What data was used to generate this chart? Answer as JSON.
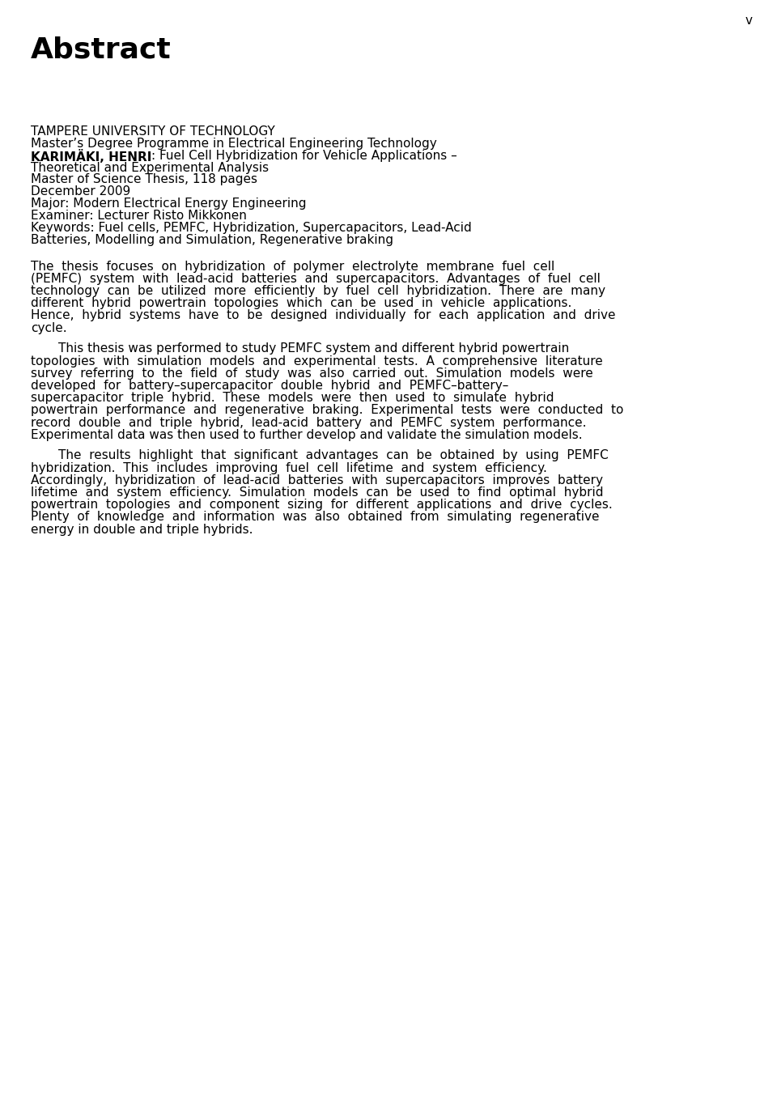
{
  "page_number": "v",
  "title": "Abstract",
  "background_color": "#ffffff",
  "text_color": "#000000",
  "page_number_fontsize": 11,
  "title_fontsize": 26,
  "body_fontsize": 11,
  "header_lines": [
    {
      "text": "TAMPERE UNIVERSITY OF TECHNOLOGY",
      "bold": false
    },
    {
      "text": "Master’s Degree Programme in Electrical Engineering Technology",
      "bold": false
    },
    {
      "text_parts": [
        {
          "text": "KARIMÄKI, HENRI",
          "bold": true
        },
        {
          "text": ": Fuel Cell Hybridization for Vehicle Applications –",
          "bold": false
        }
      ]
    },
    {
      "text": "Theoretical and Experimental Analysis",
      "bold": false
    },
    {
      "text": "Master of Science Thesis, 118 pages",
      "bold": false
    },
    {
      "text": "December 2009",
      "bold": false
    },
    {
      "text": "Major: Modern Electrical Energy Engineering",
      "bold": false
    },
    {
      "text": "Examiner: Lecturer Risto Mikkonen",
      "bold": false
    },
    {
      "text": "Keywords: Fuel cells, PEMFC, Hybridization, Supercapacitors, Lead-Acid",
      "bold": false
    },
    {
      "text": "Batteries, Modelling and Simulation, Regenerative braking",
      "bold": false
    }
  ],
  "paragraphs": [
    {
      "indent_first": false,
      "lines": [
        "The  thesis  focuses  on  hybridization  of  polymer  electrolyte  membrane  fuel  cell",
        "(PEMFC)  system  with  lead-acid  batteries  and  supercapacitors.  Advantages  of  fuel  cell",
        "technology  can  be  utilized  more  efficiently  by  fuel  cell  hybridization.  There  are  many",
        "different  hybrid  powertrain  topologies  which  can  be  used  in  vehicle  applications.",
        "Hence,  hybrid  systems  have  to  be  designed  individually  for  each  application  and  drive",
        "cycle."
      ]
    },
    {
      "indent_first": true,
      "lines": [
        "This thesis was performed to study PEMFC system and different hybrid powertrain",
        "topologies  with  simulation  models  and  experimental  tests.  A  comprehensive  literature",
        "survey  referring  to  the  field  of  study  was  also  carried  out.  Simulation  models  were",
        "developed  for  battery–supercapacitor  double  hybrid  and  PEMFC–battery–",
        "supercapacitor  triple  hybrid.  These  models  were  then  used  to  simulate  hybrid",
        "powertrain  performance  and  regenerative  braking.  Experimental  tests  were  conducted  to",
        "record  double  and  triple  hybrid,  lead-acid  battery  and  PEMFC  system  performance.",
        "Experimental data was then used to further develop and validate the simulation models."
      ]
    },
    {
      "indent_first": true,
      "lines": [
        "The  results  highlight  that  significant  advantages  can  be  obtained  by  using  PEMFC",
        "hybridization.  This  includes  improving  fuel  cell  lifetime  and  system  efficiency.",
        "Accordingly,  hybridization  of  lead-acid  batteries  with  supercapacitors  improves  battery",
        "lifetime  and  system  efficiency.  Simulation  models  can  be  used  to  find  optimal  hybrid",
        "powertrain  topologies  and  component  sizing  for  different  applications  and  drive  cycles.",
        "Plenty  of  knowledge  and  information  was  also  obtained  from  simulating  regenerative",
        "energy in double and triple hybrids."
      ]
    }
  ]
}
